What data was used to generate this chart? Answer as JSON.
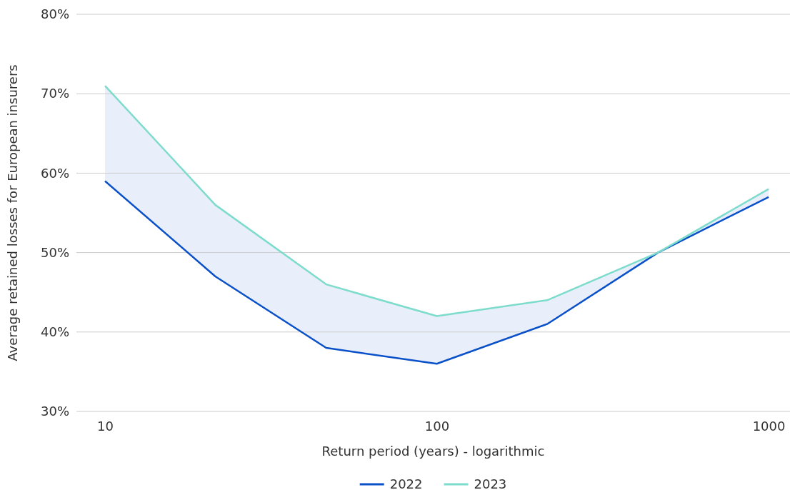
{
  "chart_data": {
    "type": "line",
    "xlabel": "Return period (years) - logarithmic",
    "ylabel": "Average retained losses for European insurers",
    "x": [
      10,
      21.5,
      46.4,
      100,
      215,
      464,
      1000
    ],
    "series": [
      {
        "name": "2022",
        "color": "#0a50c8",
        "values": [
          59,
          47,
          38,
          36,
          41,
          50,
          57
        ]
      },
      {
        "name": "2023",
        "color": "#7ddccc",
        "values": [
          71,
          56,
          46,
          42,
          44,
          50,
          58
        ],
        "lower": [
          59,
          47,
          38,
          36,
          41,
          50,
          57
        ],
        "upper": [
          71,
          56,
          46,
          42,
          44,
          50,
          58
        ]
      }
    ],
    "log": "x",
    "xlim": [
      8.2,
      1160
    ],
    "xticks": [
      10,
      100,
      1000
    ],
    "ylim": [
      30,
      80
    ],
    "yticks": [
      {
        "value": 30,
        "label": "30%"
      },
      {
        "value": 40,
        "label": "40%"
      },
      {
        "value": 50,
        "label": "50%"
      },
      {
        "value": 60,
        "label": "60%"
      },
      {
        "value": 70,
        "label": "70%"
      },
      {
        "value": 80,
        "label": "80%"
      }
    ],
    "grid": "y",
    "legend": "bottom",
    "marker": "none",
    "line_style": "solid"
  }
}
